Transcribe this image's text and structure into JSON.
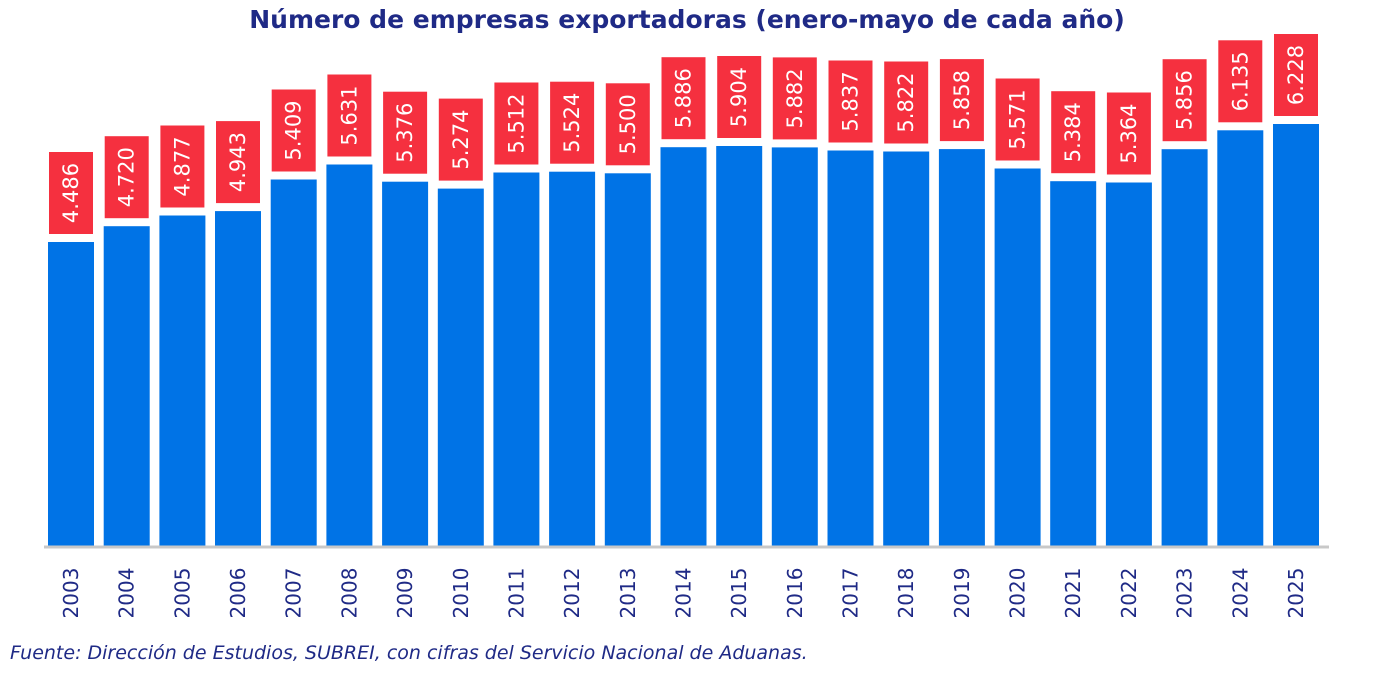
{
  "chart_data": {
    "type": "bar",
    "title": "Número de empresas exportadoras (enero-mayo de cada año)",
    "xlabel": "",
    "ylabel": "",
    "categories": [
      "2003",
      "2004",
      "2005",
      "2006",
      "2007",
      "2008",
      "2009",
      "2010",
      "2011",
      "2012",
      "2013",
      "2014",
      "2015",
      "2016",
      "2017",
      "2018",
      "2019",
      "2020",
      "2021",
      "2022",
      "2023",
      "2024",
      "2025"
    ],
    "values": [
      4486,
      4720,
      4877,
      4943,
      5409,
      5631,
      5376,
      5274,
      5512,
      5524,
      5500,
      5886,
      5904,
      5882,
      5837,
      5822,
      5858,
      5571,
      5384,
      5364,
      5856,
      6135,
      6228
    ],
    "value_labels": [
      "4.486",
      "4.720",
      "4.877",
      "4.943",
      "5.409",
      "5.631",
      "5.376",
      "5.274",
      "5.512",
      "5.524",
      "5.500",
      "5.886",
      "5.904",
      "5.882",
      "5.837",
      "5.822",
      "5.858",
      "5.571",
      "5.384",
      "5.364",
      "5.856",
      "6.135",
      "6.228"
    ],
    "ylim": [
      0,
      6228
    ],
    "grid": false,
    "legend": "none",
    "colors": {
      "bar": "#0073e6",
      "label_box": "#f5303f",
      "label_text": "#ffffff",
      "axis_line": "#c8c8c8",
      "text": "#1f2a86"
    }
  },
  "source": "Fuente: Dirección de Estudios, SUBREI, con cifras del Servicio Nacional de Aduanas."
}
